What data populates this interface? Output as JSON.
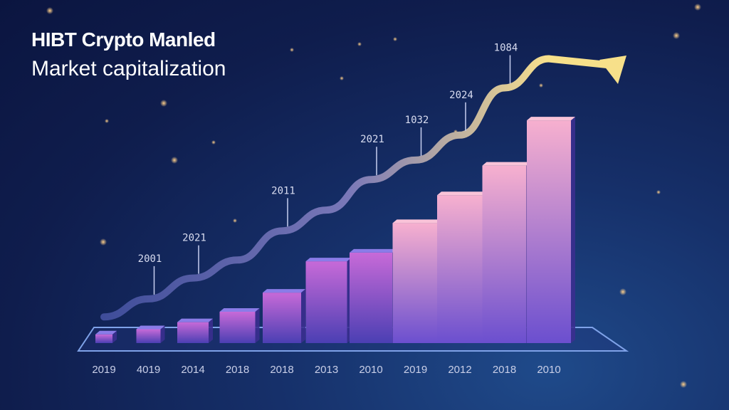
{
  "header": {
    "title": "HIBT Crypto Manled",
    "subtitle": "Market capitalization"
  },
  "colors": {
    "background": "#0f1d4d",
    "bar_low": "#5a4fc7",
    "bar_high": "#f3a3c8",
    "trend_start": "#4a5aa8",
    "trend_end": "#f7e08a"
  },
  "chart_data": {
    "type": "bar",
    "title": "",
    "xlabel": "",
    "ylabel": "",
    "categories": [
      "2019",
      "4019",
      "2014",
      "2018",
      "2018",
      "2013",
      "2010",
      "2019",
      "2012",
      "2018",
      "2010"
    ],
    "values": [
      5,
      8,
      12,
      18,
      29,
      47,
      52,
      69,
      85,
      102,
      128
    ],
    "ylim": [
      0,
      135
    ],
    "grid": false,
    "trend_line": {
      "values": [
        5,
        18,
        33,
        46,
        67,
        82,
        104,
        118,
        136,
        170,
        191
      ],
      "annotations": [
        {
          "label": "2001",
          "at_index": 1
        },
        {
          "label": "2021",
          "at_index": 2
        },
        {
          "label": "2011",
          "at_index": 4
        },
        {
          "label": "2021",
          "at_index": 6
        },
        {
          "label": "1032",
          "at_index": 7
        },
        {
          "label": "2024",
          "at_index": 8
        },
        {
          "label": "1084",
          "at_index": 9
        }
      ]
    }
  }
}
